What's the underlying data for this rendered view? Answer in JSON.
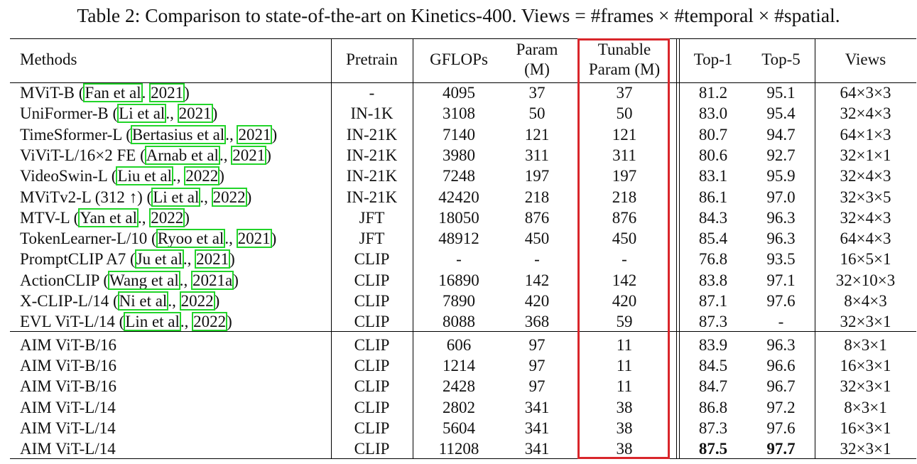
{
  "caption": "Table 2: Comparison to state-of-the-art on Kinetics-400. Views = #frames × #temporal × #spatial.",
  "header": {
    "methods": "Methods",
    "pretrain": "Pretrain",
    "gflops": "GFLOPs",
    "param_line1": "Param",
    "param_line2": "(M)",
    "tunable_line1": "Tunable",
    "tunable_line2": "Param (M)",
    "top1": "Top-1",
    "top5": "Top-5",
    "views": "Views"
  },
  "rows": [
    {
      "name": "MViT-B (",
      "cite1": "Fan et al",
      "sep": ". ",
      "cite2": "2021",
      "close": ")",
      "pretrain": "-",
      "gflops": "4095",
      "param": "37",
      "tunable": "37",
      "top1": "81.2",
      "top5": "95.1",
      "views": "64×3×3"
    },
    {
      "name": "UniFormer-B (",
      "cite1": "Li et al",
      "sep": "., ",
      "cite2": "2021",
      "close": ")",
      "pretrain": "IN-1K",
      "gflops": "3108",
      "param": "50",
      "tunable": "50",
      "top1": "83.0",
      "top5": "95.4",
      "views": "32×4×3"
    },
    {
      "name": "TimeSformer-L (",
      "cite1": "Bertasius et al",
      "sep": "., ",
      "cite2": "2021",
      "close": ")",
      "pretrain": "IN-21K",
      "gflops": "7140",
      "param": "121",
      "tunable": "121",
      "top1": "80.7",
      "top5": "94.7",
      "views": "64×1×3"
    },
    {
      "name": "ViViT-L/16×2 FE (",
      "cite1": "Arnab et al",
      "sep": "., ",
      "cite2": "2021",
      "close": ")",
      "pretrain": "IN-21K",
      "gflops": "3980",
      "param": "311",
      "tunable": "311",
      "top1": "80.6",
      "top5": "92.7",
      "views": "32×1×1"
    },
    {
      "name": "VideoSwin-L (",
      "cite1": "Liu et al",
      "sep": "., ",
      "cite2": "2022",
      "close": ")",
      "pretrain": "IN-21K",
      "gflops": "7248",
      "param": "197",
      "tunable": "197",
      "top1": "83.1",
      "top5": "95.9",
      "views": "32×4×3"
    },
    {
      "name": "MViTv2-L (312 ↑) (",
      "cite1": "Li et al",
      "sep": "., ",
      "cite2": "2022",
      "close": ")",
      "pretrain": "IN-21K",
      "gflops": "42420",
      "param": "218",
      "tunable": "218",
      "top1": "86.1",
      "top5": "97.0",
      "views": "32×3×5"
    },
    {
      "name": "MTV-L (",
      "cite1": "Yan et al",
      "sep": "., ",
      "cite2": "2022",
      "close": ")",
      "pretrain": "JFT",
      "gflops": "18050",
      "param": "876",
      "tunable": "876",
      "top1": "84.3",
      "top5": "96.3",
      "views": "32×4×3"
    },
    {
      "name": "TokenLearner-L/10 (",
      "cite1": "Ryoo et al",
      "sep": "., ",
      "cite2": "2021",
      "close": ")",
      "pretrain": "JFT",
      "gflops": "48912",
      "param": "450",
      "tunable": "450",
      "top1": "85.4",
      "top5": "96.3",
      "views": "64×4×3"
    },
    {
      "name": "PromptCLIP A7 (",
      "cite1": "Ju et al",
      "sep": "., ",
      "cite2": "2021",
      "close": ")",
      "pretrain": "CLIP",
      "gflops": "-",
      "param": "-",
      "tunable": "-",
      "top1": "76.8",
      "top5": "93.5",
      "views": "16×5×1"
    },
    {
      "name": "ActionCLIP (",
      "cite1": "Wang et al",
      "sep": "., ",
      "cite2": "2021a",
      "close": ")",
      "pretrain": "CLIP",
      "gflops": "16890",
      "param": "142",
      "tunable": "142",
      "top1": "83.8",
      "top5": "97.1",
      "views": "32×10×3"
    },
    {
      "name": "X-CLIP-L/14 (",
      "cite1": "Ni et al",
      "sep": "., ",
      "cite2": "2022",
      "close": ")",
      "pretrain": "CLIP",
      "gflops": "7890",
      "param": "420",
      "tunable": "420",
      "top1": "87.1",
      "top5": "97.6",
      "views": "8×4×3"
    },
    {
      "name": "EVL ViT-L/14 (",
      "cite1": "Lin et al",
      "sep": "., ",
      "cite2": "2022",
      "close": ")",
      "pretrain": "CLIP",
      "gflops": "8088",
      "param": "368",
      "tunable": "59",
      "top1": "87.3",
      "top5": "-",
      "views": "32×3×1"
    },
    {
      "name": "AIM ViT-B/16",
      "cite1": "",
      "sep": "",
      "cite2": "",
      "close": "",
      "pretrain": "CLIP",
      "gflops": "606",
      "param": "97",
      "tunable": "11",
      "top1": "83.9",
      "top5": "96.3",
      "views": "8×3×1"
    },
    {
      "name": "AIM ViT-B/16",
      "cite1": "",
      "sep": "",
      "cite2": "",
      "close": "",
      "pretrain": "CLIP",
      "gflops": "1214",
      "param": "97",
      "tunable": "11",
      "top1": "84.5",
      "top5": "96.6",
      "views": "16×3×1"
    },
    {
      "name": "AIM ViT-B/16",
      "cite1": "",
      "sep": "",
      "cite2": "",
      "close": "",
      "pretrain": "CLIP",
      "gflops": "2428",
      "param": "97",
      "tunable": "11",
      "top1": "84.7",
      "top5": "96.7",
      "views": "32×3×1"
    },
    {
      "name": "AIM ViT-L/14",
      "cite1": "",
      "sep": "",
      "cite2": "",
      "close": "",
      "pretrain": "CLIP",
      "gflops": "2802",
      "param": "341",
      "tunable": "38",
      "top1": "86.8",
      "top5": "97.2",
      "views": "8×3×1"
    },
    {
      "name": "AIM ViT-L/14",
      "cite1": "",
      "sep": "",
      "cite2": "",
      "close": "",
      "pretrain": "CLIP",
      "gflops": "5604",
      "param": "341",
      "tunable": "38",
      "top1": "87.3",
      "top5": "97.6",
      "views": "16×3×1"
    },
    {
      "name": "AIM ViT-L/14",
      "cite1": "",
      "sep": "",
      "cite2": "",
      "close": "",
      "pretrain": "CLIP",
      "gflops": "11208",
      "param": "341",
      "tunable": "38",
      "top1": "87.5",
      "top5": "97.7",
      "views": "32×3×1",
      "bold_top": true
    }
  ],
  "colors": {
    "citation_box": "#22d42a",
    "highlight_box": "#d9262b"
  }
}
